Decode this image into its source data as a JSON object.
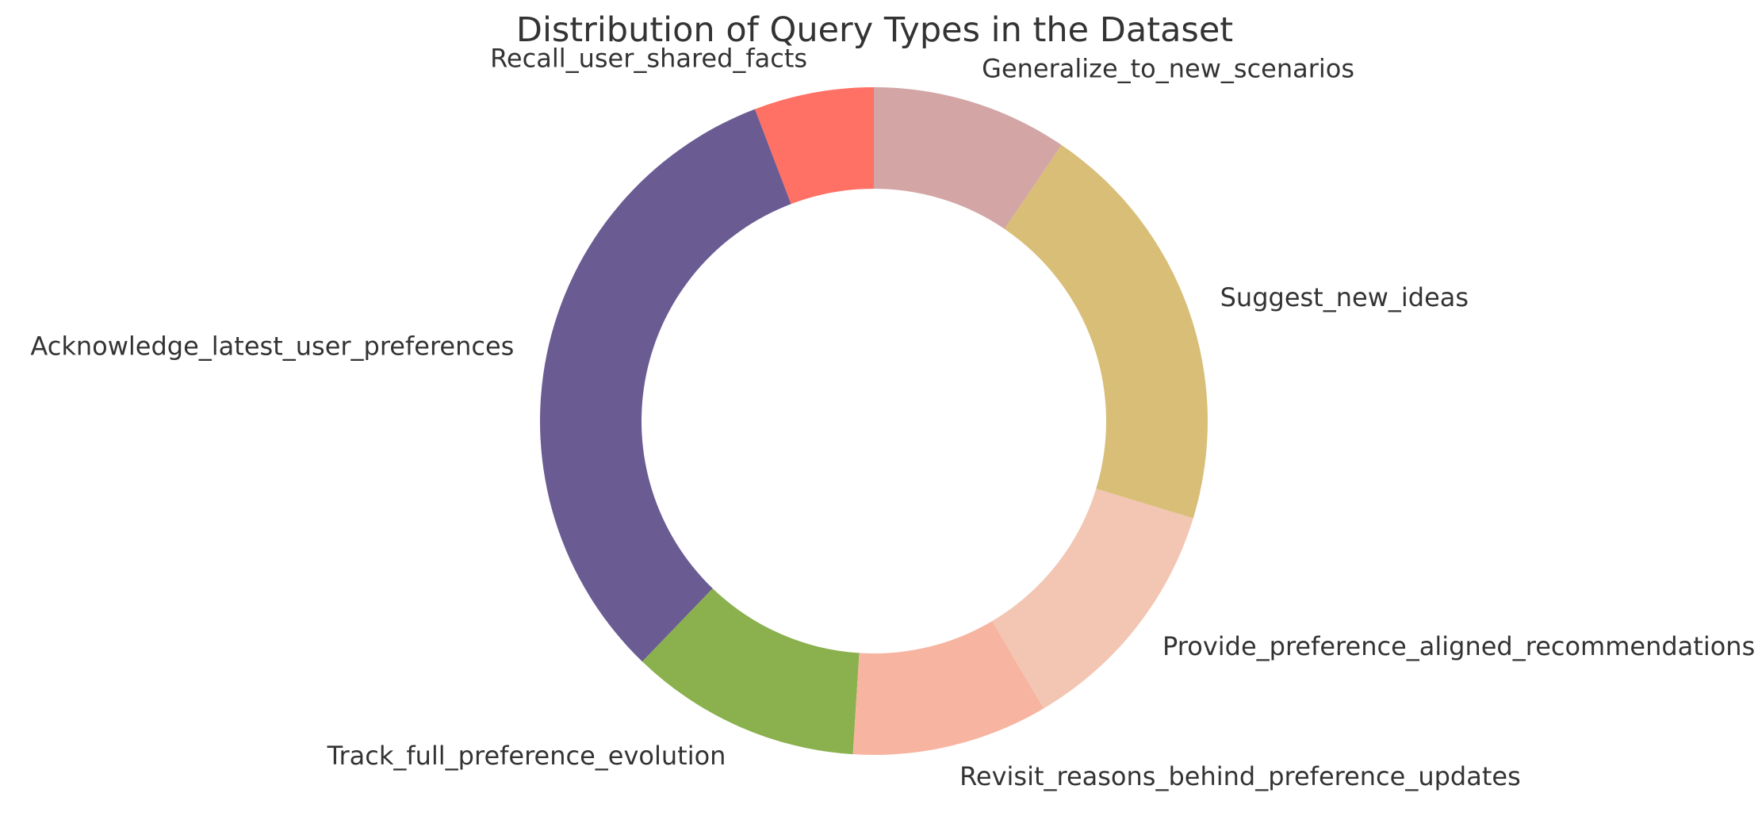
{
  "chart_data": {
    "type": "pie",
    "style": "donut",
    "title": "Distribution of Query Types in the Dataset",
    "start_angle": "top",
    "direction": "counterclockwise",
    "slices": [
      {
        "label": "Recall_user_shared_facts",
        "value": 5.8,
        "color": "#ff7065"
      },
      {
        "label": "Acknowledge_latest_user_preferences",
        "value": 32.0,
        "color": "#6a5b92"
      },
      {
        "label": "Track_full_preference_evolution",
        "value": 11.2,
        "color": "#8ab14d"
      },
      {
        "label": "Revisit_reasons_behind_preference_updates",
        "value": 9.5,
        "color": "#f7b5a1"
      },
      {
        "label": "Provide_preference_aligned_recommendations",
        "value": 11.8,
        "color": "#f2c6b3"
      },
      {
        "label": "Suggest_new_ideas",
        "value": 20.2,
        "color": "#d9be78"
      },
      {
        "label": "Generalize_to_new_scenarios",
        "value": 9.5,
        "color": "#d3a5a5"
      }
    ],
    "legend": "none",
    "grid": false
  }
}
